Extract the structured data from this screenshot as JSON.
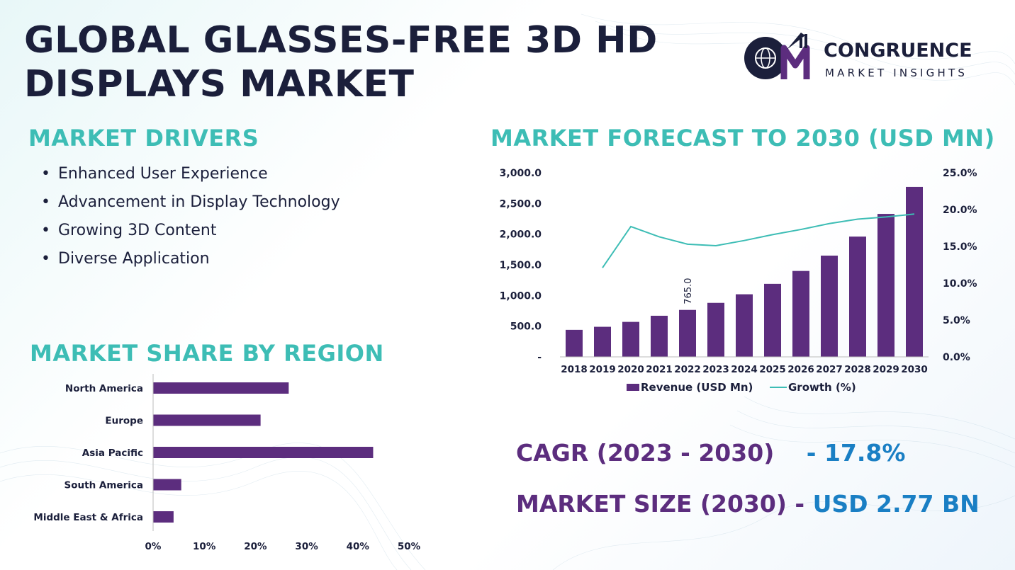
{
  "title": "GLOBAL GLASSES-FREE 3D HD DISPLAYS MARKET",
  "logo": {
    "name": "CONGRUENCE",
    "tagline": "MARKET INSIGHTS",
    "icon": "cmi-logo-icon"
  },
  "drivers": {
    "heading": "MARKET DRIVERS",
    "items": [
      "Enhanced User Experience",
      "Advancement in Display Technology",
      "Growing 3D Content",
      "Diverse Application"
    ]
  },
  "kpis": {
    "cagr_label": "CAGR (2023 - 2030)",
    "cagr_value": "- 17.8%",
    "size_label": "MARKET SIZE (2030) -",
    "size_value": "USD 2.77 BN"
  },
  "colors": {
    "bar": "#5c2d7e",
    "line": "#3dbdb5",
    "heading": "#3dbdb5",
    "dark": "#1b1f3b",
    "accent_blue": "#1a7fc4"
  },
  "chart_data": [
    {
      "type": "bar",
      "title": "MARKET FORECAST TO 2030 (USD MN)",
      "categories": [
        "2018",
        "2019",
        "2020",
        "2021",
        "2022",
        "2023",
        "2024",
        "2025",
        "2026",
        "2027",
        "2028",
        "2029",
        "2030"
      ],
      "series": [
        {
          "name": "Revenue (USD Mn)",
          "type": "bar",
          "axis": "left",
          "values": [
            440,
            490,
            570,
            670,
            765,
            880,
            1020,
            1190,
            1400,
            1650,
            1960,
            2330,
            2770
          ]
        },
        {
          "name": "Growth (%)",
          "type": "line",
          "axis": "right",
          "values": [
            null,
            12.1,
            17.7,
            16.3,
            15.3,
            15.1,
            15.8,
            16.6,
            17.3,
            18.1,
            18.7,
            19.0,
            19.4
          ]
        }
      ],
      "data_labels": [
        {
          "index": 4,
          "text": "765.0"
        }
      ],
      "ylim_left": [
        0,
        3000
      ],
      "yticks_left": [
        "-",
        "500.0",
        "1,000.0",
        "1,500.0",
        "2,000.0",
        "2,500.0",
        "3,000.0"
      ],
      "ylim_right": [
        0,
        25
      ],
      "yticks_right": [
        "0.0%",
        "5.0%",
        "10.0%",
        "15.0%",
        "20.0%",
        "25.0%"
      ],
      "grid": false,
      "legend": "bottom"
    },
    {
      "type": "bar",
      "orientation": "horizontal",
      "title": "MARKET SHARE BY REGION",
      "categories": [
        "North America",
        "Europe",
        "Asia Pacific",
        "South America",
        "Middle East & Africa"
      ],
      "values": [
        26.5,
        21.0,
        43.0,
        5.5,
        4.0
      ],
      "xlim": [
        0,
        50
      ],
      "xticks": [
        "0%",
        "10%",
        "20%",
        "30%",
        "40%",
        "50%"
      ],
      "grid": false,
      "legend": "none"
    }
  ]
}
